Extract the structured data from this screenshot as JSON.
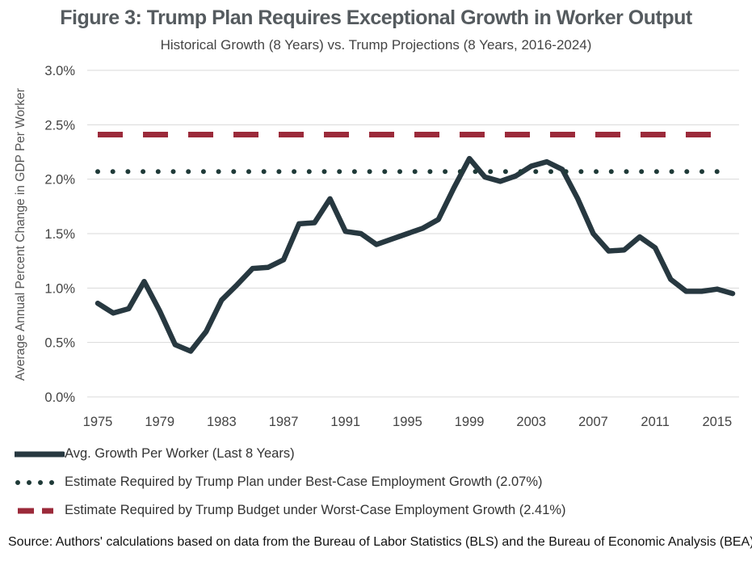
{
  "header": {
    "title": "Figure 3: Trump Plan Requires Exceptional Growth in Worker Output",
    "subtitle": "Historical Growth (8 Years) vs. Trump Projections (8 Years, 2016-2024)"
  },
  "legend": {
    "items": [
      {
        "label": "Avg. Growth Per Worker (Last 8 Years)",
        "style": "solid"
      },
      {
        "label": "Estimate Required by Trump Plan under Best-Case Employment Growth (2.07%)",
        "style": "dotted"
      },
      {
        "label": "Estimate Required by Trump Budget under Worst-Case Employment Growth (2.41%)",
        "style": "dashed"
      }
    ]
  },
  "source": "Source: Authors' calculations based on data from the Bureau of Labor Statistics (BLS) and the Bureau of Economic Analysis (BEA)",
  "chart_data": {
    "type": "line",
    "title": "Figure 3: Trump Plan Requires Exceptional Growth in Worker Output",
    "subtitle": "Historical Growth (8 Years) vs. Trump Projections (8 Years, 2016-2024)",
    "xlabel": "",
    "ylabel": "Average Annual Percent Change in GDP Per Worker",
    "ylim": [
      0,
      3.0
    ],
    "xlim": [
      1975,
      2016
    ],
    "yticks": [
      "0.0%",
      "0.5%",
      "1.0%",
      "1.5%",
      "2.0%",
      "2.5%",
      "3.0%"
    ],
    "ytick_values": [
      0,
      0.5,
      1.0,
      1.5,
      2.0,
      2.5,
      3.0
    ],
    "xticks": [
      "1975",
      "1979",
      "1983",
      "1987",
      "1991",
      "1995",
      "1999",
      "2003",
      "2007",
      "2011",
      "2015"
    ],
    "xtick_values": [
      1975,
      1979,
      1983,
      1987,
      1991,
      1995,
      1999,
      2003,
      2007,
      2011,
      2015
    ],
    "grid": true,
    "legend_position": "bottom",
    "series": [
      {
        "name": "Avg. Growth Per Worker (Last 8 Years)",
        "color": "#273840",
        "style": "solid",
        "x": [
          1975,
          1976,
          1977,
          1978,
          1979,
          1980,
          1981,
          1982,
          1983,
          1984,
          1985,
          1986,
          1987,
          1988,
          1989,
          1990,
          1991,
          1992,
          1993,
          1994,
          1995,
          1996,
          1997,
          1998,
          1999,
          2000,
          2001,
          2002,
          2003,
          2004,
          2005,
          2006,
          2007,
          2008,
          2009,
          2010,
          2011,
          2012,
          2013,
          2014,
          2015,
          2016
        ],
        "y": [
          0.86,
          0.77,
          0.81,
          1.06,
          0.79,
          0.48,
          0.42,
          0.6,
          0.89,
          1.03,
          1.18,
          1.19,
          1.26,
          1.59,
          1.6,
          1.82,
          1.52,
          1.5,
          1.4,
          1.45,
          1.5,
          1.55,
          1.63,
          1.92,
          2.19,
          2.02,
          1.98,
          2.03,
          2.12,
          2.16,
          2.09,
          1.82,
          1.5,
          1.34,
          1.35,
          1.47,
          1.37,
          1.08,
          0.97,
          0.97,
          0.99,
          0.95
        ]
      },
      {
        "name": "Estimate Required by Trump Plan under Best-Case Employment Growth (2.07%)",
        "color": "#1f3a38",
        "style": "dotted",
        "x": [
          1975,
          2016
        ],
        "y": [
          2.07,
          2.07
        ]
      },
      {
        "name": "Estimate Required by Trump Budget under Worst-Case Employment Growth (2.41%)",
        "color": "#9b2a3a",
        "style": "dashed",
        "x": [
          1975,
          2016
        ],
        "y": [
          2.41,
          2.41
        ]
      }
    ]
  }
}
